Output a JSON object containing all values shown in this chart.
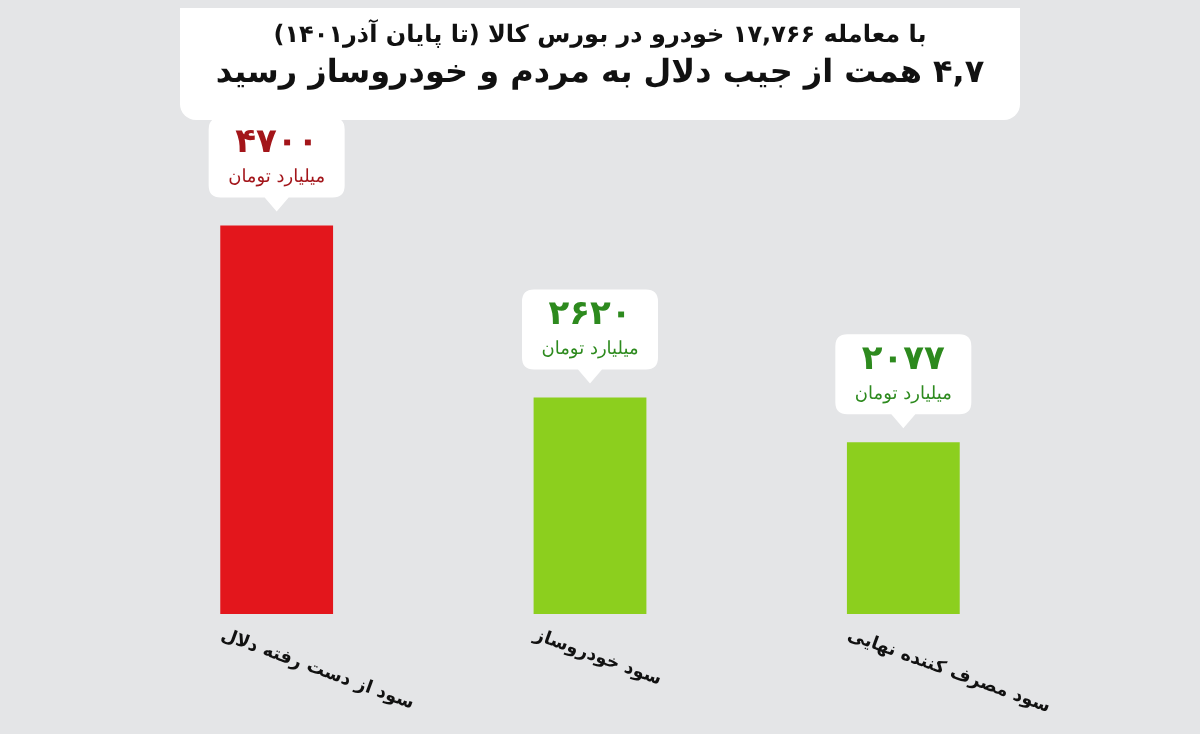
{
  "chart_data": {
    "type": "bar",
    "title": "۴,۷ همت از جیب دلال به مردم و خودروساز رسید",
    "subtitle": "با معامله ۱۷,۷۶۶ خودرو در بورس کالا (تا پایان آذر۱۴۰۱)",
    "categories": [
      "سود از دست رفته دلال",
      "سود خودروساز",
      "سود مصرف کننده نهایی"
    ],
    "values": [
      4700,
      2620,
      2077
    ],
    "colors": [
      "#e3161c",
      "#8ccf1e",
      "#8ccf1e"
    ],
    "value_labels": [
      "۴۷۰۰ میلیارد تومان",
      "۲۶۲۰ میلیارد تومان",
      "۲۰۷۷ میلیارد تومان"
    ],
    "legend": false
  }
}
